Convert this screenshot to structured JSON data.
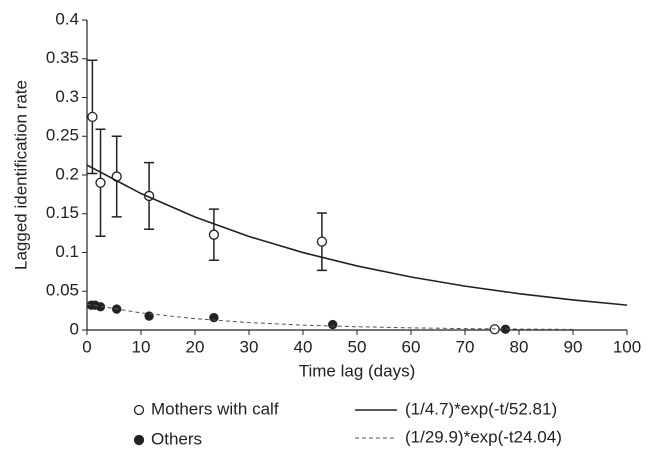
{
  "chart_data": {
    "type": "scatter",
    "x_label": "Time lag (days)",
    "y_label": "Lagged identification rate",
    "xlim": [
      0,
      100
    ],
    "ylim": [
      0,
      0.4
    ],
    "xticks": [
      0,
      10,
      20,
      30,
      40,
      50,
      60,
      70,
      80,
      90,
      100
    ],
    "yticks": [
      0,
      0.05,
      0.1,
      0.15,
      0.2,
      0.25,
      0.3,
      0.35,
      0.4
    ],
    "grid": false,
    "series": [
      {
        "name": "Mothers with calf",
        "kind": "points",
        "marker": "open",
        "color": "#222",
        "x": [
          1,
          2.5,
          5.5,
          11.5,
          23.5,
          43.5,
          75.5
        ],
        "values": [
          0.275,
          0.19,
          0.198,
          0.173,
          0.123,
          0.114,
          0.001
        ],
        "errors": [
          0.073,
          0.069,
          0.052,
          0.043,
          0.033,
          0.037,
          null
        ]
      },
      {
        "name": "Others",
        "kind": "points",
        "marker": "filled",
        "color": "#222",
        "x": [
          0.8,
          1.5,
          2.5,
          5.5,
          11.5,
          23.5,
          45.5,
          77.5
        ],
        "values": [
          0.032,
          0.032,
          0.03,
          0.027,
          0.018,
          0.016,
          0.007,
          0.001
        ]
      },
      {
        "name": "(1/4.7)*exp(-t/52.81)",
        "kind": "curve",
        "style": "solid",
        "color": "#222",
        "x": [
          0,
          10,
          20,
          30,
          40,
          50,
          60,
          70,
          80,
          90,
          100
        ],
        "values": [
          0.2128,
          0.1761,
          0.1458,
          0.1207,
          0.0999,
          0.0827,
          0.0684,
          0.0566,
          0.0469,
          0.0388,
          0.0321
        ]
      },
      {
        "name": "(1/29.9)*exp(-t24.04)",
        "kind": "curve",
        "style": "dashed",
        "color": "#555",
        "x": [
          0,
          10,
          20,
          30,
          40,
          50,
          60,
          70,
          80,
          90
        ],
        "values": [
          0.0334,
          0.0221,
          0.0146,
          0.0096,
          0.0063,
          0.0042,
          0.0028,
          0.0018,
          0.0012,
          0.0008
        ]
      }
    ]
  }
}
